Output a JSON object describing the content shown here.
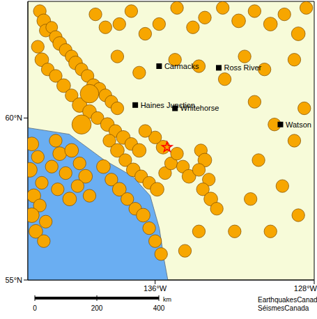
{
  "chart_data": {
    "type": "scatter",
    "xlim": [
      -142.4,
      -128
    ],
    "ylim": [
      55,
      63.6
    ],
    "xticks": [
      {
        "value": -136,
        "label": "136°W"
      },
      {
        "value": -128,
        "label": "128°W"
      }
    ],
    "yticks": [
      {
        "value": 55,
        "label": "55°N"
      },
      {
        "value": 60,
        "label": "60°N"
      }
    ],
    "grid": false,
    "color": "#f7a600",
    "earthquakes": [
      {
        "lon": -141.8,
        "lat": 63.3,
        "magnitude": 3
      },
      {
        "lon": -141.6,
        "lat": 63.0,
        "magnitude": 3.5
      },
      {
        "lon": -141.5,
        "lat": 62.7,
        "magnitude": 3
      },
      {
        "lon": -141.2,
        "lat": 62.8,
        "magnitude": 2.5
      },
      {
        "lon": -141.0,
        "lat": 62.5,
        "magnitude": 3
      },
      {
        "lon": -140.8,
        "lat": 62.3,
        "magnitude": 3.5
      },
      {
        "lon": -140.5,
        "lat": 62.1,
        "magnitude": 3
      },
      {
        "lon": -140.2,
        "lat": 61.9,
        "magnitude": 3
      },
      {
        "lon": -140.0,
        "lat": 61.7,
        "magnitude": 3.5
      },
      {
        "lon": -139.7,
        "lat": 61.5,
        "magnitude": 3
      },
      {
        "lon": -139.4,
        "lat": 61.3,
        "magnitude": 3
      },
      {
        "lon": -139.1,
        "lat": 61.0,
        "magnitude": 3.5
      },
      {
        "lon": -138.8,
        "lat": 60.9,
        "magnitude": 3
      },
      {
        "lon": -138.5,
        "lat": 60.7,
        "magnitude": 3
      },
      {
        "lon": -138.2,
        "lat": 60.5,
        "magnitude": 3
      },
      {
        "lon": -137.9,
        "lat": 60.3,
        "magnitude": 3
      },
      {
        "lon": -141.9,
        "lat": 62.2,
        "magnitude": 3
      },
      {
        "lon": -141.7,
        "lat": 61.8,
        "magnitude": 3.5
      },
      {
        "lon": -141.4,
        "lat": 61.5,
        "magnitude": 3
      },
      {
        "lon": -141.0,
        "lat": 61.3,
        "magnitude": 3
      },
      {
        "lon": -140.6,
        "lat": 61.0,
        "magnitude": 3.5
      },
      {
        "lon": -140.2,
        "lat": 60.7,
        "magnitude": 3
      },
      {
        "lon": -139.8,
        "lat": 60.4,
        "magnitude": 4
      },
      {
        "lon": -139.3,
        "lat": 60.2,
        "magnitude": 3.5
      },
      {
        "lon": -138.9,
        "lat": 60.0,
        "magnitude": 3
      },
      {
        "lon": -138.4,
        "lat": 59.8,
        "magnitude": 3.5
      },
      {
        "lon": -138.0,
        "lat": 59.6,
        "magnitude": 3
      },
      {
        "lon": -137.6,
        "lat": 59.4,
        "magnitude": 3.5
      },
      {
        "lon": -137.2,
        "lat": 59.2,
        "magnitude": 3
      },
      {
        "lon": -136.8,
        "lat": 59.0,
        "magnitude": 3.5
      },
      {
        "lon": -139.3,
        "lat": 60.75,
        "magnitude": 6.5
      },
      {
        "lon": -139.7,
        "lat": 59.8,
        "magnitude": 7
      },
      {
        "lon": -142.2,
        "lat": 59.2,
        "magnitude": 3.5
      },
      {
        "lon": -141.9,
        "lat": 58.8,
        "magnitude": 3
      },
      {
        "lon": -142.3,
        "lat": 58.4,
        "magnitude": 4
      },
      {
        "lon": -141.7,
        "lat": 58.0,
        "magnitude": 3
      },
      {
        "lon": -142.1,
        "lat": 57.6,
        "magnitude": 3.5
      },
      {
        "lon": -141.8,
        "lat": 57.3,
        "magnitude": 3
      },
      {
        "lon": -142.2,
        "lat": 57.0,
        "magnitude": 4
      },
      {
        "lon": -141.5,
        "lat": 56.8,
        "magnitude": 3
      },
      {
        "lon": -141.2,
        "lat": 58.5,
        "magnitude": 3
      },
      {
        "lon": -140.8,
        "lat": 58.9,
        "magnitude": 3.5
      },
      {
        "lon": -140.5,
        "lat": 58.3,
        "magnitude": 3
      },
      {
        "lon": -140.9,
        "lat": 57.8,
        "magnitude": 3
      },
      {
        "lon": -140.3,
        "lat": 57.5,
        "magnitude": 3.5
      },
      {
        "lon": -141.0,
        "lat": 59.3,
        "magnitude": 3
      },
      {
        "lon": -140.2,
        "lat": 59.0,
        "magnitude": 3.5
      },
      {
        "lon": -139.8,
        "lat": 58.6,
        "magnitude": 3
      },
      {
        "lon": -139.5,
        "lat": 58.2,
        "magnitude": 3.5
      },
      {
        "lon": -139.9,
        "lat": 57.9,
        "magnitude": 3
      },
      {
        "lon": -139.3,
        "lat": 57.6,
        "magnitude": 3
      },
      {
        "lon": -142.0,
        "lat": 56.5,
        "magnitude": 3.5
      },
      {
        "lon": -141.6,
        "lat": 56.2,
        "magnitude": 3
      },
      {
        "lon": -138.3,
        "lat": 59.3,
        "magnitude": 3
      },
      {
        "lon": -137.9,
        "lat": 59.0,
        "magnitude": 3.5
      },
      {
        "lon": -137.5,
        "lat": 58.7,
        "magnitude": 3
      },
      {
        "lon": -137.1,
        "lat": 58.4,
        "magnitude": 3.5
      },
      {
        "lon": -136.7,
        "lat": 58.2,
        "magnitude": 3
      },
      {
        "lon": -136.3,
        "lat": 58.0,
        "magnitude": 3
      },
      {
        "lon": -135.9,
        "lat": 57.8,
        "magnitude": 3.5
      },
      {
        "lon": -135.5,
        "lat": 58.3,
        "magnitude": 3
      },
      {
        "lon": -135.2,
        "lat": 58.6,
        "magnitude": 3
      },
      {
        "lon": -134.9,
        "lat": 58.9,
        "magnitude": 3
      },
      {
        "lon": -135.6,
        "lat": 59.1,
        "magnitude": 3.5
      },
      {
        "lon": -136.0,
        "lat": 59.4,
        "magnitude": 3
      },
      {
        "lon": -136.5,
        "lat": 59.6,
        "magnitude": 3
      },
      {
        "lon": -138.6,
        "lat": 58.5,
        "magnitude": 3.5
      },
      {
        "lon": -138.2,
        "lat": 58.1,
        "magnitude": 3
      },
      {
        "lon": -137.8,
        "lat": 57.8,
        "magnitude": 3.5
      },
      {
        "lon": -137.4,
        "lat": 57.5,
        "magnitude": 3
      },
      {
        "lon": -137.0,
        "lat": 57.2,
        "magnitude": 3
      },
      {
        "lon": -136.6,
        "lat": 57.0,
        "magnitude": 3.5
      },
      {
        "lon": -136.3,
        "lat": 56.6,
        "magnitude": 3
      },
      {
        "lon": -136.0,
        "lat": 56.2,
        "magnitude": 3
      },
      {
        "lon": -135.7,
        "lat": 55.8,
        "magnitude": 3
      },
      {
        "lon": -134.6,
        "lat": 58.5,
        "magnitude": 3
      },
      {
        "lon": -134.3,
        "lat": 58.2,
        "magnitude": 3.5
      },
      {
        "lon": -133.7,
        "lat": 59.0,
        "magnitude": 3
      },
      {
        "lon": -133.5,
        "lat": 58.7,
        "magnitude": 3.5
      },
      {
        "lon": -133.8,
        "lat": 58.4,
        "magnitude": 3
      },
      {
        "lon": -133.3,
        "lat": 58.1,
        "magnitude": 3
      },
      {
        "lon": -133.6,
        "lat": 57.8,
        "magnitude": 3
      },
      {
        "lon": -133.2,
        "lat": 57.5,
        "magnitude": 3.5
      },
      {
        "lon": -132.9,
        "lat": 57.2,
        "magnitude": 3
      },
      {
        "lon": -139.0,
        "lat": 63.2,
        "magnitude": 3
      },
      {
        "lon": -138.5,
        "lat": 62.8,
        "magnitude": 3
      },
      {
        "lon": -137.8,
        "lat": 62.9,
        "magnitude": 3
      },
      {
        "lon": -137.2,
        "lat": 63.3,
        "magnitude": 3
      },
      {
        "lon": -136.5,
        "lat": 62.6,
        "magnitude": 3
      },
      {
        "lon": -135.8,
        "lat": 62.9,
        "magnitude": 3
      },
      {
        "lon": -134.9,
        "lat": 63.4,
        "magnitude": 3
      },
      {
        "lon": -134.1,
        "lat": 62.8,
        "magnitude": 3
      },
      {
        "lon": -133.5,
        "lat": 63.1,
        "magnitude": 3
      },
      {
        "lon": -132.6,
        "lat": 63.4,
        "magnitude": 3
      },
      {
        "lon": -131.8,
        "lat": 63.0,
        "magnitude": 3.5
      },
      {
        "lon": -131.0,
        "lat": 63.3,
        "magnitude": 3
      },
      {
        "lon": -130.2,
        "lat": 62.9,
        "magnitude": 3.5
      },
      {
        "lon": -129.5,
        "lat": 63.2,
        "magnitude": 3
      },
      {
        "lon": -128.8,
        "lat": 62.6,
        "magnitude": 3.5
      },
      {
        "lon": -128.4,
        "lat": 63.4,
        "magnitude": 3
      },
      {
        "lon": -129.0,
        "lat": 61.8,
        "magnitude": 3
      },
      {
        "lon": -130.5,
        "lat": 61.5,
        "magnitude": 3
      },
      {
        "lon": -131.5,
        "lat": 61.9,
        "magnitude": 3
      },
      {
        "lon": -132.5,
        "lat": 61.2,
        "magnitude": 3
      },
      {
        "lon": -133.8,
        "lat": 61.6,
        "magnitude": 3
      },
      {
        "lon": -135.0,
        "lat": 61.8,
        "magnitude": 3
      },
      {
        "lon": -136.8,
        "lat": 61.4,
        "magnitude": 3
      },
      {
        "lon": -137.9,
        "lat": 61.9,
        "magnitude": 3
      },
      {
        "lon": -131.0,
        "lat": 60.5,
        "magnitude": 3
      },
      {
        "lon": -130.0,
        "lat": 59.8,
        "magnitude": 3
      },
      {
        "lon": -129.0,
        "lat": 59.3,
        "magnitude": 3
      },
      {
        "lon": -130.8,
        "lat": 58.7,
        "magnitude": 3
      },
      {
        "lon": -129.6,
        "lat": 57.9,
        "magnitude": 3
      },
      {
        "lon": -128.8,
        "lat": 57.0,
        "magnitude": 3
      },
      {
        "lon": -130.2,
        "lat": 56.5,
        "magnitude": 3
      },
      {
        "lon": -131.2,
        "lat": 57.5,
        "magnitude": 3
      },
      {
        "lon": -132.0,
        "lat": 56.5,
        "magnitude": 3
      },
      {
        "lon": -133.8,
        "lat": 56.5,
        "magnitude": 3
      },
      {
        "lon": -134.5,
        "lat": 55.9,
        "magnitude": 3
      },
      {
        "lon": -128.5,
        "lat": 60.3,
        "magnitude": 3
      }
    ],
    "epicenter": {
      "lon": -135.4,
      "lat": 59.1
    },
    "places": [
      {
        "name": "Carmacks",
        "lon": -135.8,
        "lat": 61.6
      },
      {
        "name": "Ross River",
        "lon": -132.8,
        "lat": 61.55
      },
      {
        "name": "Haines Junction",
        "lon": -137.0,
        "lat": 60.4
      },
      {
        "name": "Whitehorse",
        "lon": -135.0,
        "lat": 60.3
      },
      {
        "name": "Watson",
        "lon": -129.7,
        "lat": 59.8
      }
    ],
    "coastline": {
      "lon": [
        -142.4,
        -140.32,
        -138.55,
        -137.13,
        -136.25,
        -135.79,
        -135.54,
        -135.36
      ],
      "lat": [
        59.7,
        59.5,
        58.7,
        58.2,
        57.6,
        56.6,
        55.6,
        55.0
      ]
    },
    "scale_bar": {
      "ticks": [
        0,
        200,
        400
      ],
      "unit": "km"
    },
    "credits": [
      "EarthquakesCanada",
      "SéismesCanada"
    ]
  }
}
